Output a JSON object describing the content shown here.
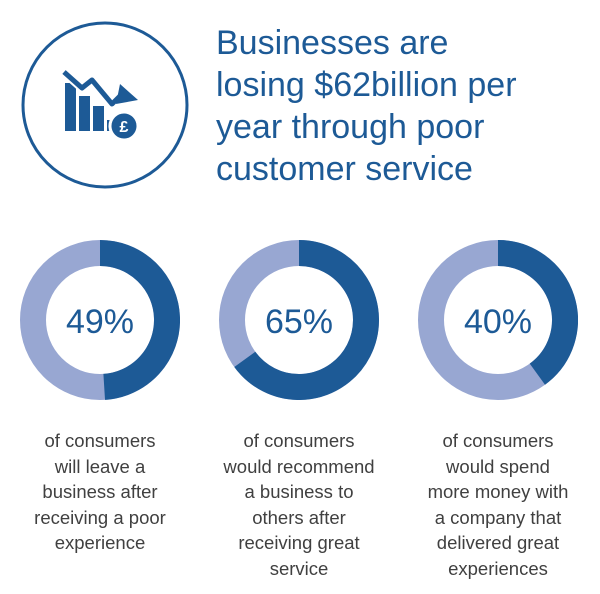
{
  "headline": {
    "lines": [
      "Businesses are",
      "losing $62billion per",
      "year through poor",
      "customer service"
    ]
  },
  "icon": {
    "name": "declining-bar-chart-pound-icon",
    "currency_symbol": "£"
  },
  "colors": {
    "primary": "#1d5a96",
    "secondary": "#98a7d2",
    "text": "#404040",
    "background": "#ffffff"
  },
  "chart_data": [
    {
      "type": "pie",
      "value": 49,
      "label": "49%",
      "caption": [
        "of consumers",
        "will leave a",
        "business after",
        "receiving a poor",
        "experience"
      ]
    },
    {
      "type": "pie",
      "value": 65,
      "label": "65%",
      "caption": [
        "of consumers",
        "would recommend",
        "a business to",
        "others after",
        "receiving great",
        "service"
      ]
    },
    {
      "type": "pie",
      "value": 40,
      "label": "40%",
      "caption": [
        "of consumers",
        "would spend",
        "more money with",
        "a company that",
        "delivered great",
        "experiences"
      ]
    }
  ]
}
